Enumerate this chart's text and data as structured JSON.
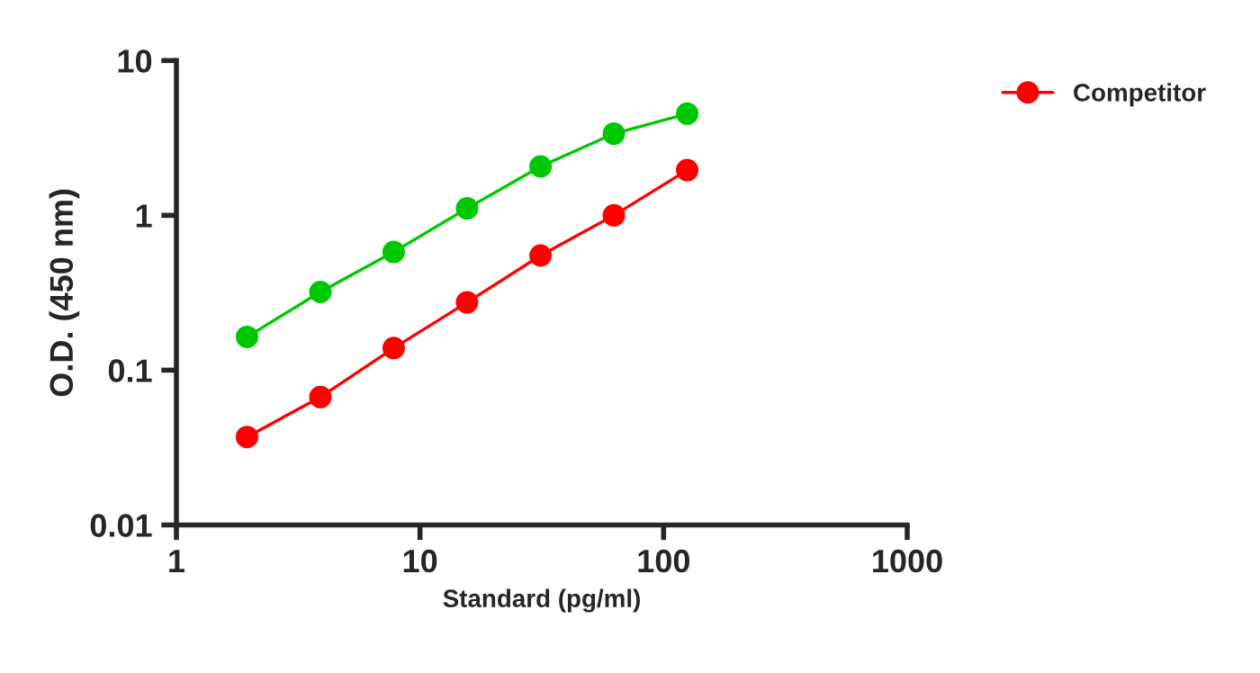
{
  "chart_data": {
    "type": "line",
    "xlabel": "Standard (pg/ml)",
    "ylabel": "O.D. (450 nm)",
    "log": "xy",
    "x": [
      1.95,
      3.9,
      7.8,
      15.6,
      31.25,
      62.5,
      125
    ],
    "series": [
      {
        "name": "Competitor",
        "color": "#ff0000",
        "values": [
          0.037,
          0.067,
          0.139,
          0.274,
          0.55,
          1.0,
          1.96
        ]
      },
      {
        "color": "#00c800",
        "values": [
          0.164,
          0.32,
          0.58,
          1.11,
          2.07,
          3.37,
          4.54
        ]
      }
    ],
    "xlim": [
      1,
      1000
    ],
    "xticks": [
      1,
      10,
      100,
      1000
    ],
    "ylim": [
      0.01,
      10
    ],
    "yticks": [
      0.01,
      0.1,
      1,
      10
    ],
    "marker": "circle",
    "legend": "top right",
    "grid": false
  }
}
